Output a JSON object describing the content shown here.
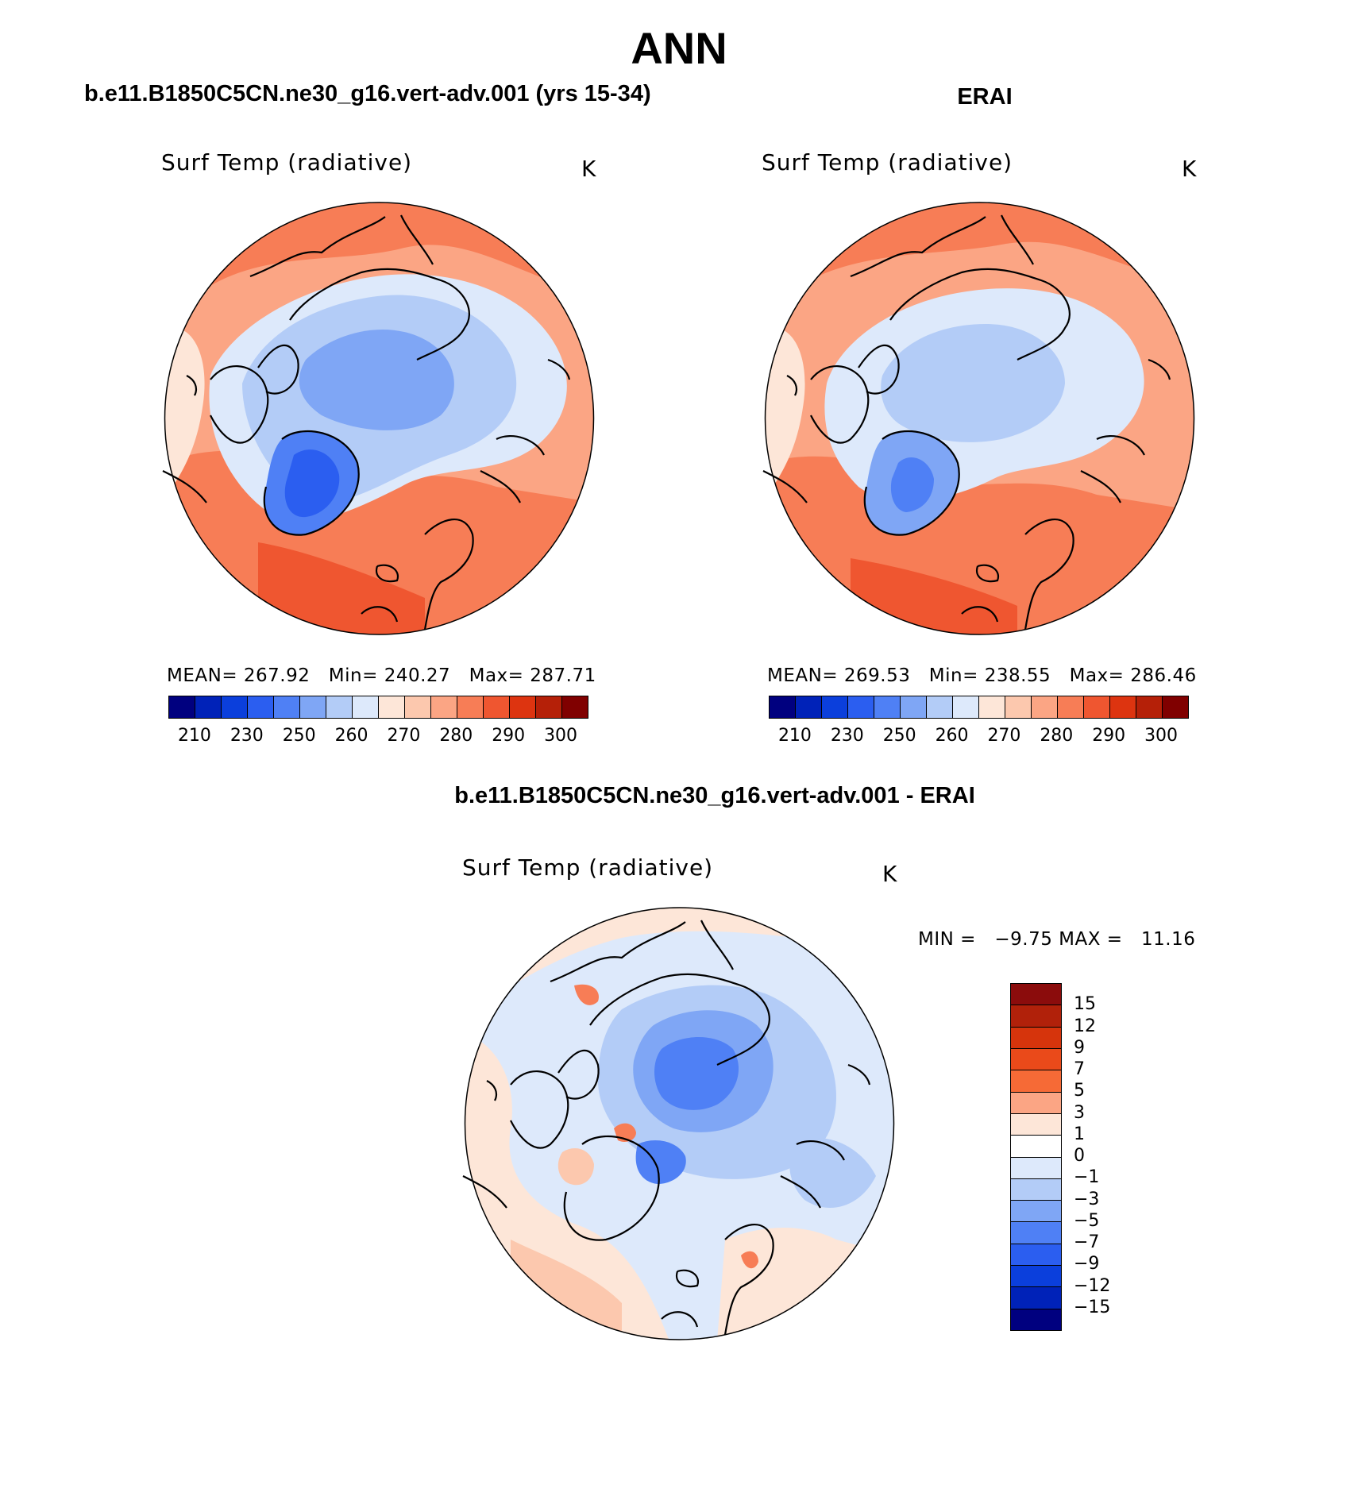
{
  "figure": {
    "season": "ANN",
    "model_title": "b.e11.B1850C5CN.ne30_g16.vert-adv.001 (yrs 15-34)",
    "obs_title": "ERAI",
    "diff_title": "b.e11.B1850C5CN.ne30_g16.vert-adv.001 - ERAI"
  },
  "panels": {
    "model": {
      "variable": "Surf Temp (radiative)",
      "units": "K",
      "stats": "MEAN= 267.92   Min= 240.27   Max= 287.71"
    },
    "obs": {
      "variable": "Surf Temp (radiative)",
      "units": "K",
      "stats": "MEAN= 269.53   Min= 238.55   Max= 286.46"
    },
    "diff": {
      "variable": "Surf Temp (radiative)",
      "units": "K",
      "stats": "MIN =   −9.75 MAX =   11.16"
    }
  },
  "colorbars": {
    "abs_ticks": [
      "210",
      "230",
      "250",
      "260",
      "270",
      "280",
      "290",
      "300"
    ],
    "abs_colors": [
      "#00007f",
      "#0022b8",
      "#0b3fdc",
      "#2b5ef0",
      "#4f80f5",
      "#7fa6f5",
      "#b3ccf7",
      "#dde9fb",
      "#fde6d8",
      "#fcc8ae",
      "#fba584",
      "#f77d56",
      "#ef5630",
      "#dd3410",
      "#b52008",
      "#800000"
    ],
    "diff_ticks": [
      "15",
      "12",
      "9",
      "7",
      "5",
      "3",
      "1",
      "0",
      "−1",
      "−3",
      "−5",
      "−7",
      "−9",
      "−12",
      "−15"
    ],
    "diff_colors": [
      "#8b0c0c",
      "#b1210a",
      "#d6340c",
      "#ea4a1a",
      "#f66a36",
      "#fba584",
      "#fde6d8",
      "#ffffff",
      "#dde9fb",
      "#b3ccf7",
      "#7fa6f5",
      "#4f80f5",
      "#2b5ef0",
      "#0b3fdc",
      "#0022b8",
      "#00007f"
    ]
  }
}
